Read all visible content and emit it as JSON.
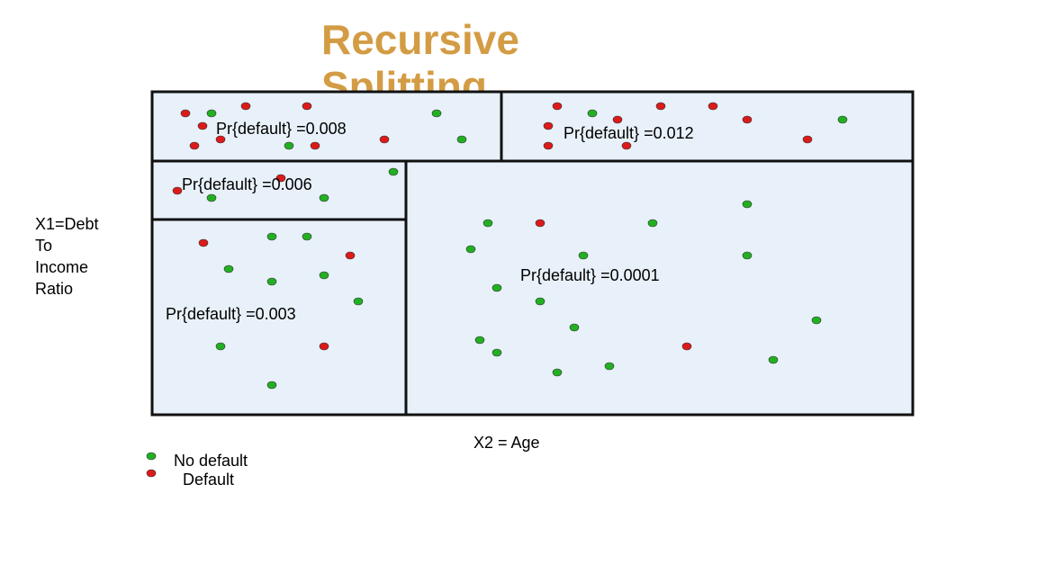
{
  "title": {
    "line1": "Recursive",
    "line2": "Splitting"
  },
  "axes": {
    "x_label": "X2 = Age",
    "y_label": [
      "X1=Debt",
      "To",
      "Income",
      "Ratio"
    ]
  },
  "regions": [
    {
      "id": "top-left",
      "label": "Pr{default} =0.008"
    },
    {
      "id": "top-right",
      "label": "Pr{default} =0.012"
    },
    {
      "id": "middle-left",
      "label": "Pr{default} =0.006"
    },
    {
      "id": "bottom-left",
      "label": "Pr{default} =0.003"
    },
    {
      "id": "right",
      "label": "Pr{default} =0.0001"
    }
  ],
  "legend": {
    "no_default": "No default",
    "default": "Default"
  },
  "colors": {
    "no_default": "#22b022",
    "default": "#dd1a1a",
    "region_fill": "#e8f1f9",
    "border": "#111111",
    "title": "#d39c44"
  }
}
